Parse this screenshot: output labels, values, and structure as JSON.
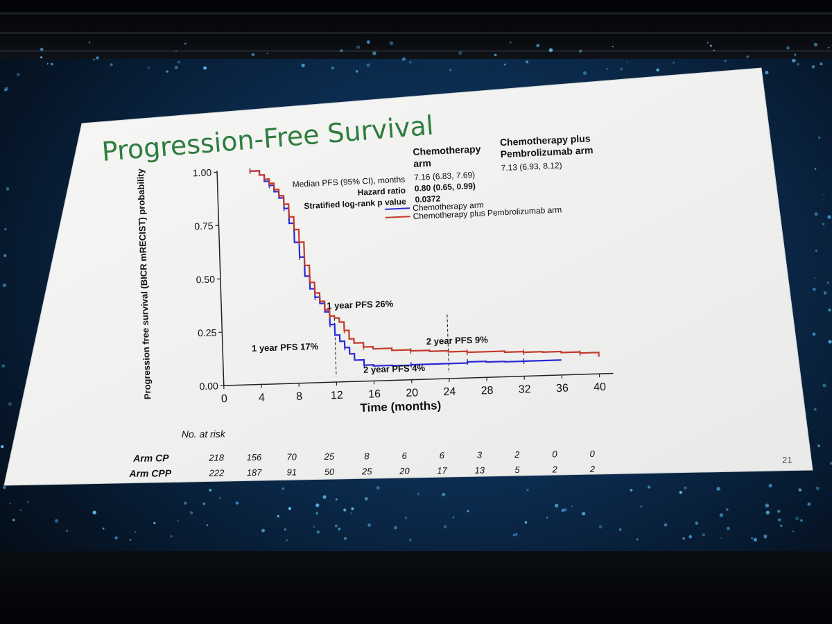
{
  "slide": {
    "title": "Progression-Free Survival",
    "page_number": "21"
  },
  "stats": {
    "col_header_1": [
      "Chemotherapy",
      "arm"
    ],
    "col_header_2": [
      "Chemotherapy plus",
      "Pembrolizumab arm"
    ],
    "rows": [
      {
        "label": "Median PFS (95% CI), months",
        "value_1": "7.16 (6.83, 7.69)",
        "value_2": "7.13 (6.93, 8.12)"
      },
      {
        "label": "Hazard ratio",
        "value_1": "0.80 (0.65, 0.99)"
      },
      {
        "label": "Stratified log-rank p value",
        "value_1": "0.0372"
      }
    ]
  },
  "legend": [
    {
      "label": "Chemotherapy arm",
      "color": "#2a2ad6"
    },
    {
      "label": "Chemotherapy plus Pembrolizumab arm",
      "color": "#c23a2a"
    }
  ],
  "annotations": {
    "cp_1yr": "1 year PFS 17%",
    "cpp_1yr": "1 year PFS 26%",
    "cp_2yr": "2 year PFS 4%",
    "cpp_2yr": "2 year PFS 9%"
  },
  "risk_table": {
    "heading": "No. at risk",
    "rows": [
      {
        "label": "Arm CP",
        "values": [
          "218",
          "156",
          "70",
          "25",
          "8",
          "6",
          "6",
          "3",
          "2",
          "0",
          "0"
        ]
      },
      {
        "label": "Arm CPP",
        "values": [
          "222",
          "187",
          "91",
          "50",
          "25",
          "20",
          "17",
          "13",
          "5",
          "2",
          "2"
        ]
      }
    ]
  },
  "chart_data": {
    "type": "line",
    "title": "",
    "xlabel": "Time (months)",
    "ylabel": "Progression free survival (BICR mRECIST) probability",
    "xlim": [
      0,
      40
    ],
    "ylim": [
      0,
      1
    ],
    "x_ticks": [
      "0",
      "4",
      "8",
      "12",
      "16",
      "20",
      "24",
      "28",
      "32",
      "36",
      "40"
    ],
    "y_ticks": [
      "0.00",
      "0.25",
      "0.50",
      "0.75",
      "1.00"
    ],
    "reference_lines_x": [
      12,
      24
    ],
    "series": [
      {
        "name": "Chemotherapy arm",
        "color": "#2a2ad6",
        "x": [
          3.5,
          4.5,
          5.0,
          5.5,
          6.0,
          6.5,
          7.0,
          7.5,
          8.0,
          8.5,
          9.0,
          9.5,
          10.0,
          10.5,
          11.0,
          11.5,
          12.0,
          12.5,
          13.0,
          13.5,
          14.0,
          15.0,
          16.0,
          18.0,
          20.0,
          22.0,
          24.0,
          26.0,
          28.0,
          30.0,
          32.0,
          34.0,
          36.0
        ],
        "y": [
          1.0,
          0.98,
          0.95,
          0.93,
          0.9,
          0.87,
          0.82,
          0.75,
          0.66,
          0.59,
          0.5,
          0.44,
          0.4,
          0.37,
          0.33,
          0.27,
          0.22,
          0.19,
          0.16,
          0.13,
          0.1,
          0.075,
          0.07,
          0.068,
          0.07,
          0.07,
          0.07,
          0.075,
          0.072,
          0.07,
          0.07,
          0.07,
          0.07
        ]
      },
      {
        "name": "Chemotherapy plus Pembrolizumab arm",
        "color": "#c23a2a",
        "x": [
          3.5,
          4.5,
          5.0,
          5.5,
          6.0,
          6.5,
          7.0,
          7.5,
          8.0,
          8.5,
          9.0,
          9.5,
          10.0,
          10.5,
          11.0,
          11.5,
          12.0,
          12.5,
          13.0,
          13.5,
          14.0,
          15.0,
          16.0,
          18.0,
          20.0,
          22.0,
          24.0,
          26.0,
          28.0,
          30.0,
          32.0,
          34.0,
          36.0,
          38.0,
          39.5,
          40.0
        ],
        "y": [
          1.0,
          0.98,
          0.96,
          0.94,
          0.91,
          0.88,
          0.84,
          0.78,
          0.72,
          0.66,
          0.55,
          0.47,
          0.42,
          0.38,
          0.34,
          0.31,
          0.3,
          0.28,
          0.24,
          0.2,
          0.18,
          0.16,
          0.15,
          0.14,
          0.135,
          0.13,
          0.125,
          0.12,
          0.12,
          0.115,
          0.112,
          0.11,
          0.105,
          0.1,
          0.1,
          0.08
        ]
      }
    ]
  }
}
